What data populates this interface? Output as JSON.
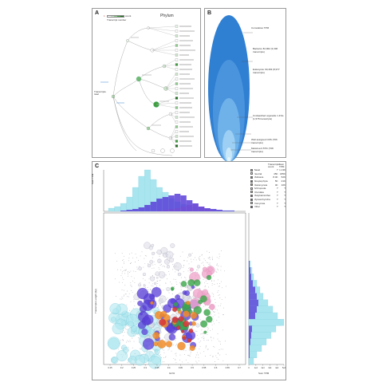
{
  "panel_a": {
    "letter": "A",
    "title": "Phylum",
    "scale_left": "1",
    "scale_right": "count",
    "scale_caption": "Transcript number",
    "root_label": "Transcripts\ntotal",
    "legend_colors": [
      "#ffffff",
      "#cfe9cf",
      "#8fcf8f",
      "#3f9f3f",
      "#1f6f1f"
    ]
  },
  "panel_b": {
    "letter": "B",
    "labels": [
      "Cumulative TPM",
      "Bacteria: 82,962 (3,300 transcripts)",
      "Eukaryota: 90,493 (8,977 transcripts)",
      "Unclassified organelle 1.4%s (1,578 transcripts)",
      "Well assigned CDS (706 transcripts)",
      "Metazoa 0.57% (708 transcripts)"
    ]
  },
  "panel_c": {
    "letter": "C",
    "top_axis_label": "Sum TPM",
    "right_axis_label": "Sum TPM",
    "xlabel": "GC%",
    "ylabel": "Transcripts Length (bp)",
    "legend": {
      "header_count": "Transcripts count",
      "header_sum": "Sum TPM",
      "items": [
        {
          "name": "Basal",
          "color": "#a8a8a8",
          "count": "?",
          "sum": "1.13K"
        },
        {
          "name": "Neutral",
          "color": "#e8e8f0",
          "count": "45K",
          "sum": "185K"
        },
        {
          "name": "Mollusca",
          "color": "#3aa84a",
          "count": "8.4K",
          "sum": "52K"
        },
        {
          "name": "Streptophyta",
          "color": "#2e8a2e",
          "count": "5K",
          "sum": "21K"
        },
        {
          "name": "Diatomyceta",
          "color": "#f28c28",
          "count": "4K",
          "sum": "10K"
        },
        {
          "name": "Arthropoda",
          "color": "#f0c2d8",
          "count": "?",
          "sum": "?"
        },
        {
          "name": "Chordata",
          "color": "#d8d832",
          "count": "?",
          "sum": "?"
        },
        {
          "name": "Platyhelminthes",
          "color": "#d63a3a",
          "count": "?",
          "sum": "?"
        },
        {
          "name": "Mycetorhyncha",
          "color": "#7b3fbf",
          "count": "?",
          "sum": "?"
        },
        {
          "name": "Oomycota",
          "color": "#c9c9e8",
          "count": "?",
          "sum": "?"
        },
        {
          "name": "Other",
          "color": "#5a3fd8",
          "count": "?",
          "sum": "?"
        }
      ]
    },
    "x_ticks": [
      "0.15",
      "0.2",
      "0.25",
      "0.3",
      "0.35",
      "0.4",
      "0.45",
      "0.5",
      "0.55",
      "0.6",
      "0.65",
      "0.7"
    ],
    "right_ticks": [
      "0",
      "1e4",
      "2e4",
      "3e4",
      "4e4",
      "5e4"
    ],
    "colors": {
      "cyan": "#a9e5ef",
      "purple": "#5a3fd8",
      "pink": "#f0a8cc",
      "green": "#3aa84a",
      "orange": "#f28c28",
      "red": "#d63a3a",
      "gray": "#bdbdbd"
    }
  }
}
